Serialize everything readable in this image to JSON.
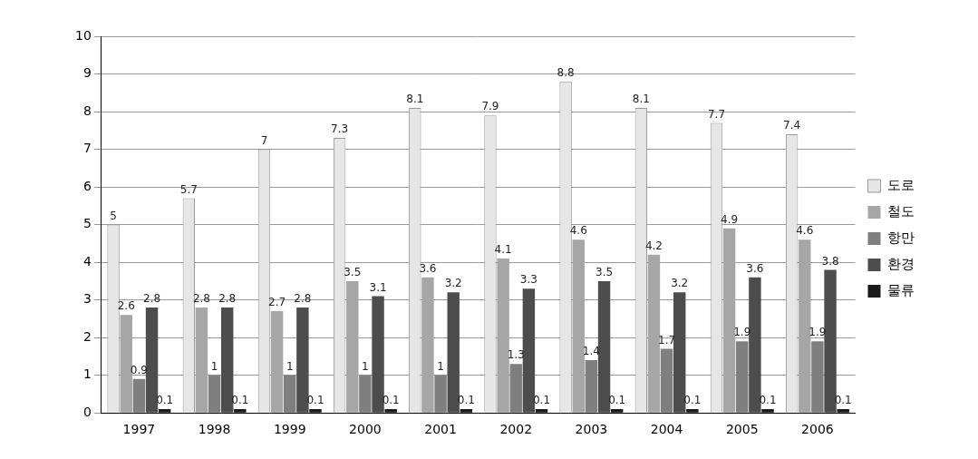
{
  "chart_data": {
    "type": "bar",
    "categories": [
      "1997",
      "1998",
      "1999",
      "2000",
      "2001",
      "2002",
      "2003",
      "2004",
      "2005",
      "2006"
    ],
    "series": [
      {
        "name": "도로",
        "color": "#e6e6e6",
        "values": [
          5,
          5.7,
          7,
          7.3,
          8.1,
          7.9,
          8.8,
          8.1,
          7.7,
          7.4
        ]
      },
      {
        "name": "철도",
        "color": "#a6a6a6",
        "values": [
          2.6,
          2.8,
          2.7,
          3.5,
          3.6,
          4.1,
          4.6,
          4.2,
          4.9,
          4.6
        ]
      },
      {
        "name": "항만",
        "color": "#7f7f7f",
        "values": [
          0.9,
          1,
          1,
          1,
          1,
          1.3,
          1.4,
          1.7,
          1.9,
          1.9
        ]
      },
      {
        "name": "환경",
        "color": "#4d4d4d",
        "values": [
          2.8,
          2.8,
          2.8,
          3.1,
          3.2,
          3.3,
          3.5,
          3.2,
          3.6,
          3.8
        ]
      },
      {
        "name": "물류",
        "color": "#1a1a1a",
        "values": [
          0.1,
          0.1,
          0.1,
          0.1,
          0.1,
          0.1,
          0.1,
          0.1,
          0.1,
          0.1
        ]
      }
    ],
    "ylim": [
      0,
      10
    ],
    "yticks": [
      0,
      1,
      2,
      3,
      4,
      5,
      6,
      7,
      8,
      9,
      10
    ],
    "grid": true,
    "legend": "right",
    "data_labels": true
  }
}
